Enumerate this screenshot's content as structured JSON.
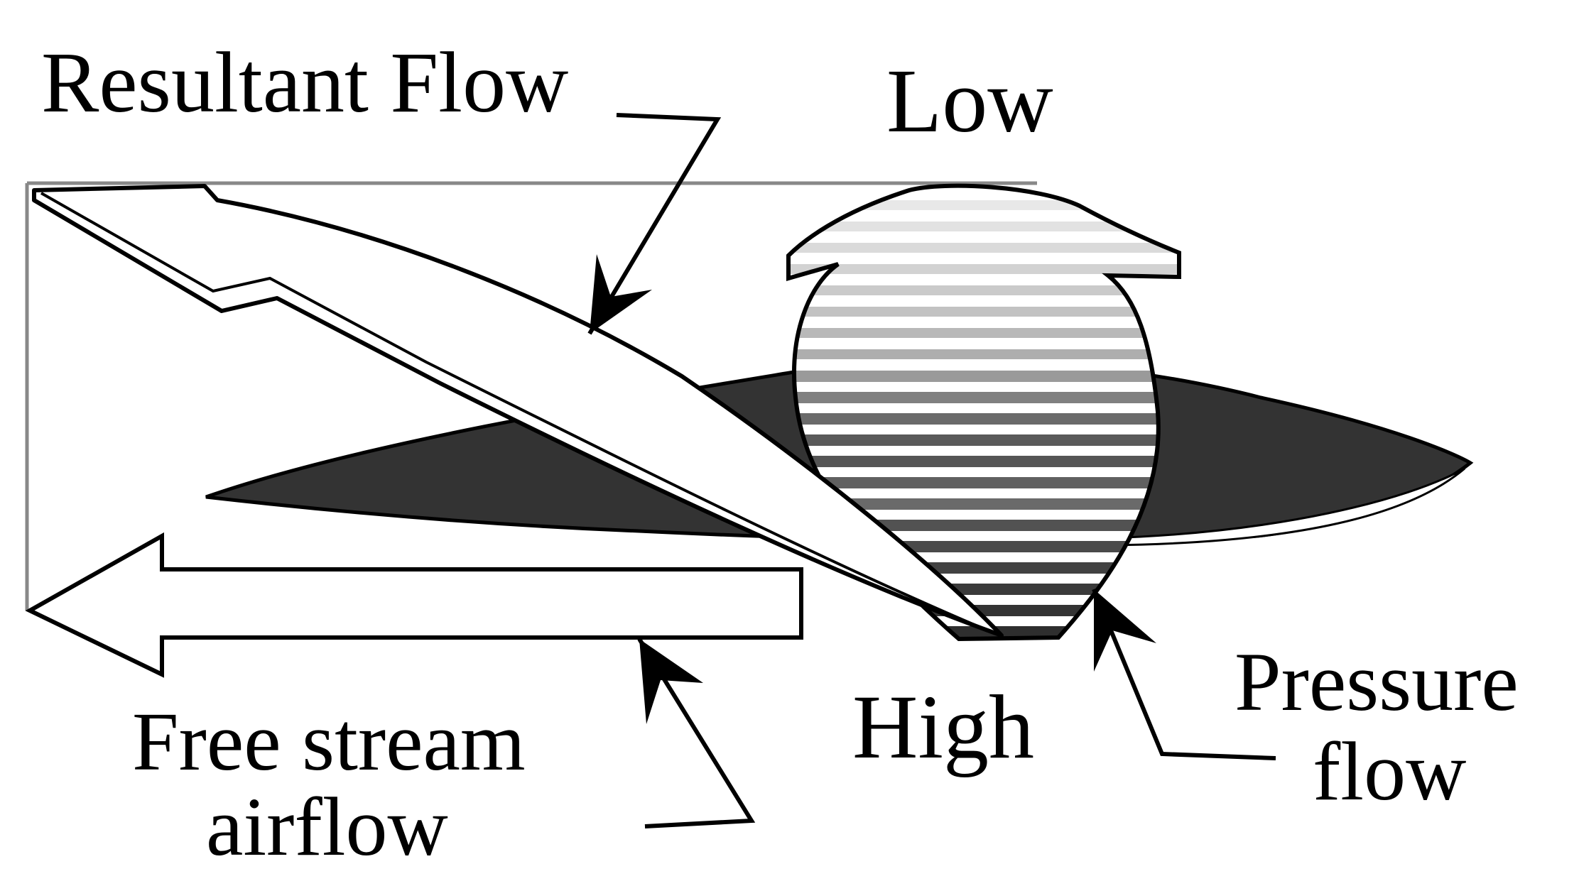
{
  "labels": {
    "resultant_flow": "Resultant Flow",
    "low": "Low",
    "high": "High",
    "free_stream_line1": "Free stream",
    "free_stream_line2": "airflow",
    "pressure_line1": "Pressure",
    "pressure_line2": "flow"
  },
  "colors": {
    "ink": "#000000",
    "background": "#ffffff",
    "airfoil": "#333333",
    "frame": "#888888"
  }
}
